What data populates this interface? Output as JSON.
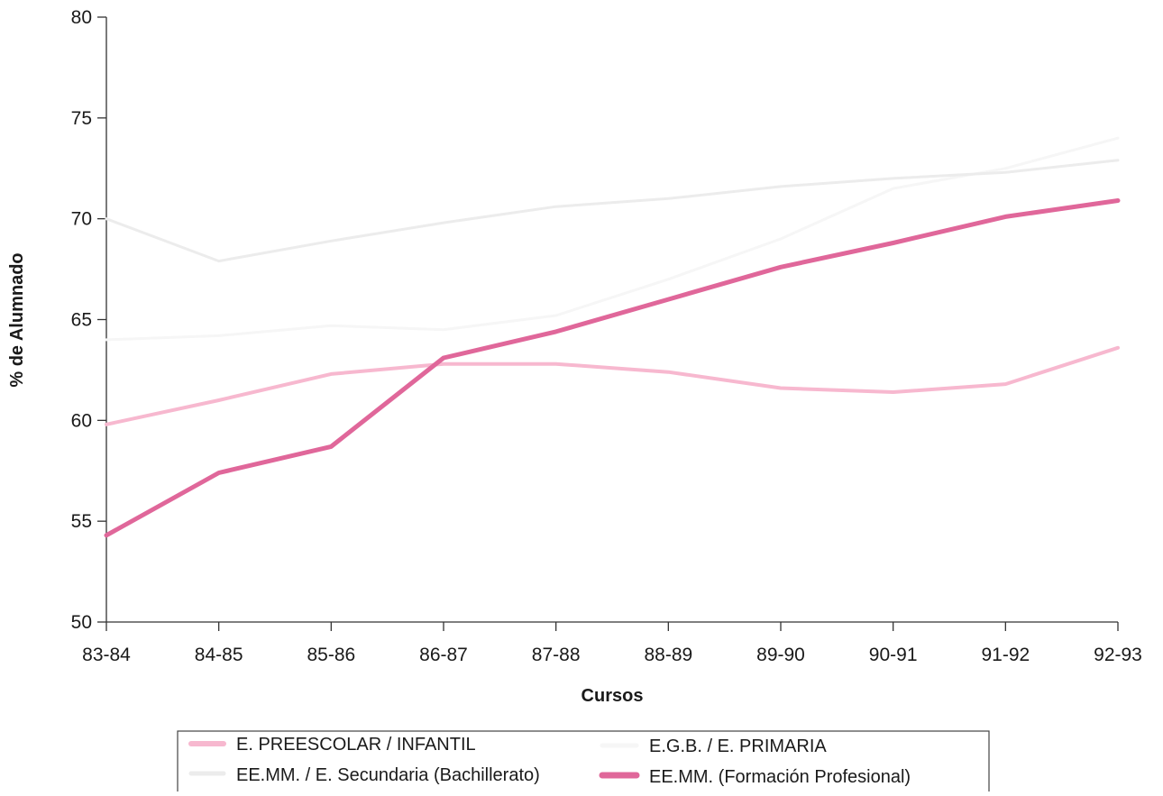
{
  "chart_data": {
    "type": "line",
    "xlabel": "Cursos",
    "ylabel": "% de Alumnado",
    "ylim": [
      50,
      80
    ],
    "yticks": [
      50,
      55,
      60,
      65,
      70,
      75,
      80
    ],
    "grid": false,
    "legend_position": "bottom",
    "categories": [
      "83-84",
      "84-85",
      "85-86",
      "86-87",
      "87-88",
      "88-89",
      "89-90",
      "90-91",
      "91-92",
      "92-93"
    ],
    "series": [
      {
        "name": "E. PREESCOLAR / INFANTIL",
        "color": "#f7b8cf",
        "values": [
          59.8,
          61.0,
          62.3,
          62.8,
          62.8,
          62.4,
          61.6,
          61.4,
          61.8,
          63.6
        ]
      },
      {
        "name": "E.G.B. / E. PRIMARIA",
        "color": "#f6f6f6",
        "values": [
          64.0,
          64.2,
          64.7,
          64.5,
          65.2,
          67.0,
          69.0,
          71.5,
          72.5,
          74.0
        ]
      },
      {
        "name": "EE.MM. / E. Secundaria (Bachillerato)",
        "color": "#ececec",
        "values": [
          70.0,
          67.9,
          68.9,
          69.8,
          70.6,
          71.0,
          71.6,
          72.0,
          72.3,
          72.9
        ]
      },
      {
        "name": "EE.MM. (Formación Profesional)",
        "color": "#e0679a",
        "values": [
          54.3,
          57.4,
          58.7,
          63.1,
          64.4,
          66.0,
          67.6,
          68.8,
          70.1,
          70.9
        ]
      }
    ]
  }
}
